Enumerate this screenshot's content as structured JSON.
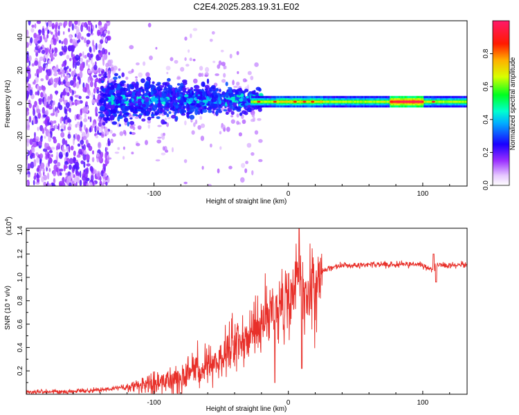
{
  "title": "C2E4.2025.283.19.31.E02",
  "spectrogram": {
    "xlabel": "Height of straight line (km)",
    "ylabel": "Frequency (Hz)",
    "colorbar_label": "Normalized spectral amplitude",
    "xlim": [
      -195,
      133
    ],
    "ylim": [
      -50,
      50
    ],
    "xticks": [
      -100,
      0,
      100
    ],
    "yticks": [
      -40,
      -20,
      0,
      20,
      40
    ],
    "colorbar_ticks": [
      "0.0",
      "0.2",
      "0.4",
      "0.6",
      "0.8"
    ],
    "colorbar_range": [
      0,
      1
    ]
  },
  "snr": {
    "xlabel": "Height of straight line (km)",
    "ylabel": "SNR (10 * v/v)",
    "multiplier": "(x10",
    "multiplier_exp": "4",
    "multiplier_close": ")",
    "xlim": [
      -195,
      133
    ],
    "ylim": [
      0,
      1.42
    ],
    "xticks": [
      -100,
      0,
      100
    ],
    "yticks": [
      "0.2",
      "0.4",
      "0.6",
      "0.8",
      "1.0",
      "1.2",
      "1.4"
    ]
  },
  "chart_data": [
    {
      "type": "heatmap",
      "title": "C2E4.2025.283.19.31.E02",
      "xlabel": "Height of straight line (km)",
      "ylabel": "Frequency (Hz)",
      "colorbar": "Normalized spectral amplitude",
      "x_range": [
        -195,
        133
      ],
      "y_range": [
        -50,
        50
      ],
      "description_points": [
        {
          "x_km": -150,
          "freq_center_hz": 0,
          "freq_spread_hz": 50,
          "amplitude": 0.15
        },
        {
          "x_km": -100,
          "freq_center_hz": 3,
          "freq_spread_hz": 12,
          "amplitude": 0.3
        },
        {
          "x_km": -60,
          "freq_center_hz": 0,
          "freq_spread_hz": 10,
          "amplitude": 0.35
        },
        {
          "x_km": -20,
          "freq_center_hz": 0,
          "freq_spread_hz": 3,
          "amplitude": 0.5
        },
        {
          "x_km": 0,
          "freq_center_hz": 1,
          "freq_spread_hz": 3,
          "amplitude": 0.6
        },
        {
          "x_km": 50,
          "freq_center_hz": 1,
          "freq_spread_hz": 2,
          "amplitude": 0.55
        },
        {
          "x_km": 90,
          "freq_center_hz": 1,
          "freq_spread_hz": 2,
          "amplitude": 0.95
        },
        {
          "x_km": 130,
          "freq_center_hz": 1,
          "freq_spread_hz": 2,
          "amplitude": 0.6
        }
      ]
    },
    {
      "type": "line",
      "xlabel": "Height of straight line (km)",
      "ylabel": "SNR (10 * v/v)",
      "y_multiplier": "x10^4",
      "x_range": [
        -195,
        133
      ],
      "ylim": [
        0,
        1.42
      ],
      "series": [
        {
          "name": "SNR",
          "color": "#e8302a",
          "x": [
            -195,
            -170,
            -150,
            -130,
            -110,
            -100,
            -90,
            -80,
            -70,
            -60,
            -50,
            -40,
            -30,
            -20,
            -10,
            0,
            5,
            8,
            10,
            15,
            20,
            30,
            40,
            60,
            80,
            100,
            108,
            110,
            115,
            133
          ],
          "y": [
            0.02,
            0.02,
            0.03,
            0.05,
            0.07,
            0.09,
            0.12,
            0.15,
            0.2,
            0.26,
            0.33,
            0.42,
            0.52,
            0.6,
            0.7,
            0.78,
            0.85,
            1.0,
            0.85,
            0.92,
            1.0,
            1.08,
            1.1,
            1.11,
            1.11,
            1.11,
            1.05,
            1.12,
            1.1,
            1.11
          ]
        }
      ]
    }
  ],
  "colors": {
    "line": "#e8302a"
  }
}
